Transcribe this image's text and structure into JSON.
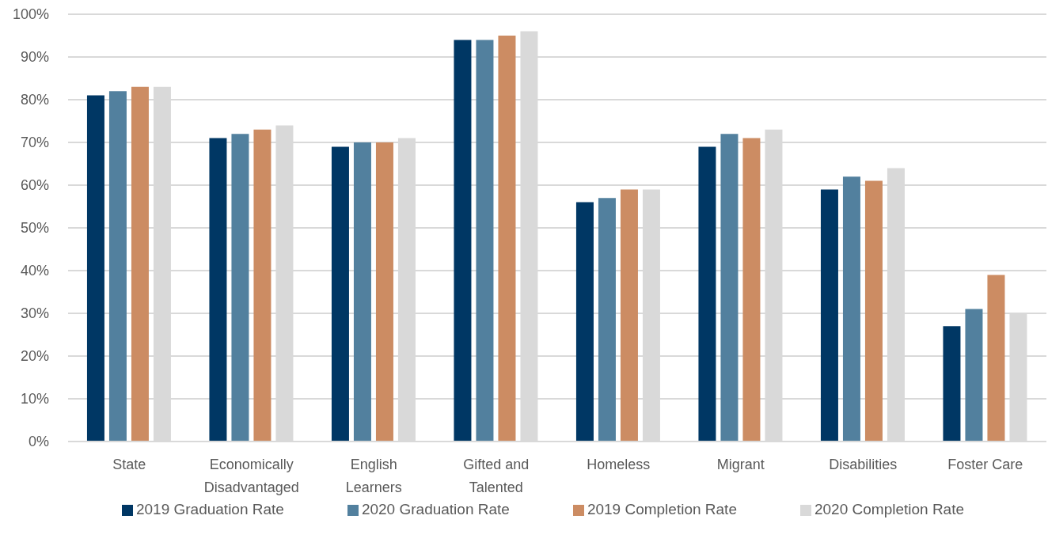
{
  "chart_data": {
    "type": "bar",
    "categories": [
      "State",
      "Economically Disadvantaged",
      "English Learners",
      "Gifted and Talented",
      "Homeless",
      "Migrant",
      "Disabilities",
      "Foster Care"
    ],
    "series": [
      {
        "name": "2019 Graduation Rate",
        "color": "#003764",
        "values": [
          81,
          71,
          69,
          94,
          56,
          69,
          59,
          27
        ]
      },
      {
        "name": "2020 Graduation Rate",
        "color": "#52809e",
        "values": [
          82,
          72,
          70,
          94,
          57,
          72,
          62,
          31
        ]
      },
      {
        "name": "2019 Completion Rate",
        "color": "#cc8c63",
        "values": [
          83,
          73,
          70,
          95,
          59,
          71,
          61,
          39
        ]
      },
      {
        "name": "2020 Completion Rate",
        "color": "#d9d9d9",
        "values": [
          83,
          74,
          71,
          96,
          59,
          73,
          64,
          30
        ]
      }
    ],
    "ylim": [
      0,
      100
    ],
    "yticks": [
      {
        "value": 0,
        "label": "0%"
      },
      {
        "value": 10,
        "label": "10%"
      },
      {
        "value": 20,
        "label": "20%"
      },
      {
        "value": 30,
        "label": "30%"
      },
      {
        "value": 40,
        "label": "40%"
      },
      {
        "value": 50,
        "label": "50%"
      },
      {
        "value": 60,
        "label": "60%"
      },
      {
        "value": 70,
        "label": "70%"
      },
      {
        "value": 80,
        "label": "80%"
      },
      {
        "value": 90,
        "label": "90%"
      },
      {
        "value": 100,
        "label": "100%"
      }
    ],
    "grid": "y",
    "legend": "bottom"
  }
}
